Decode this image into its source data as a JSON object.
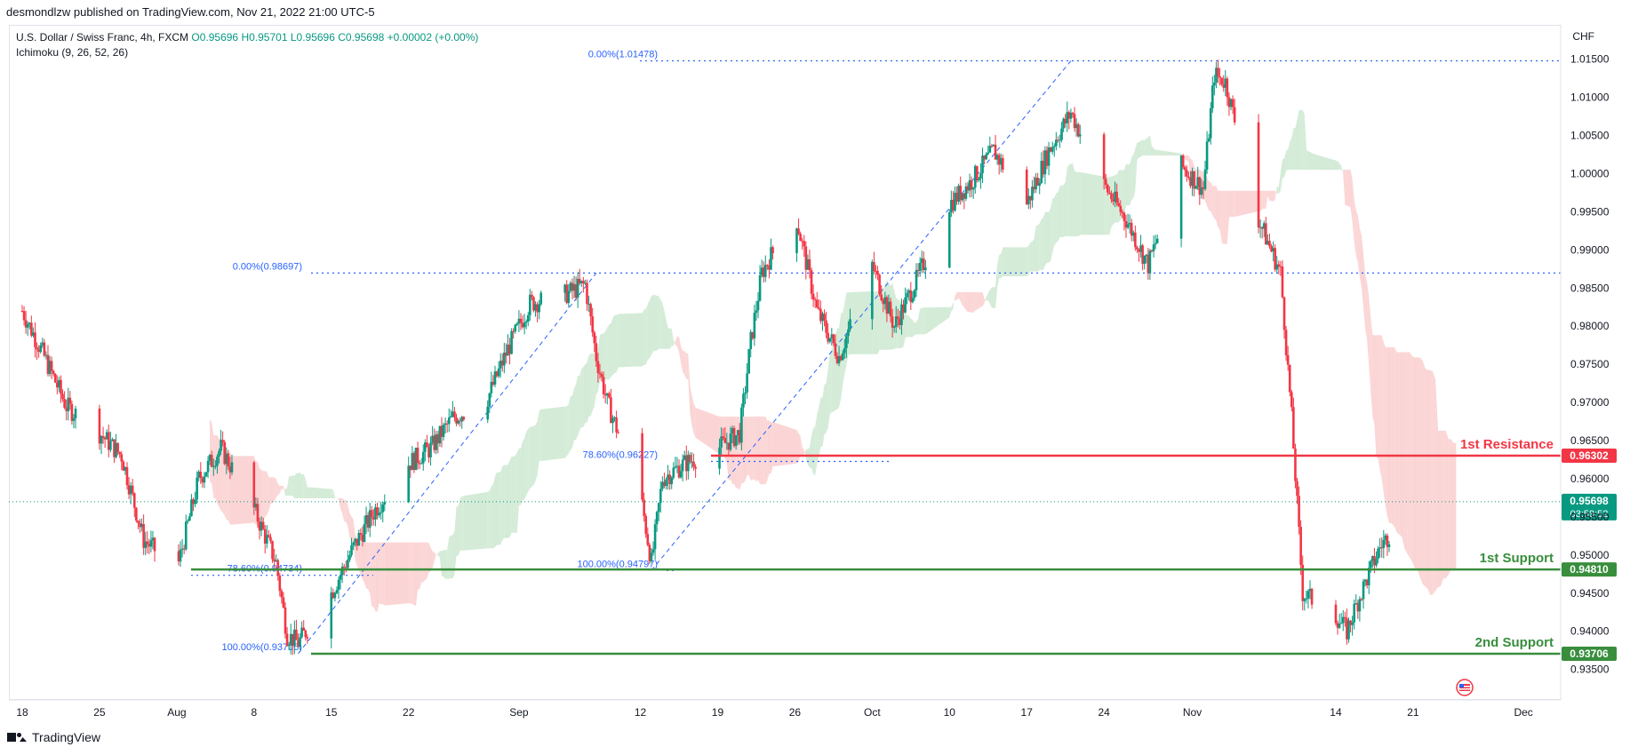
{
  "header": {
    "published_by": "desmondlzw published on TradingView.com, Nov 21, 2022 21:00 UTC-5",
    "symbol": "U.S. Dollar / Swiss Franc, 4h, FXCM",
    "ohlc": {
      "o": "O0.95696",
      "h": "H0.95701",
      "l": "L0.95696",
      "c": "C0.95698",
      "chg": "+0.00002 (+0.00%)"
    },
    "indicator": "Ichimoku (9, 26, 52, 26)",
    "currency": "CHF"
  },
  "footer": {
    "brand": "TradingView"
  },
  "colors": {
    "up": "#089981",
    "down": "#f23645",
    "resistance": "#f23645",
    "support": "#388e3c",
    "fib": "#2962ff",
    "cloud_up": "#d3ebd7",
    "cloud_down": "#fbd5d5"
  },
  "chart_data": {
    "type": "candlestick",
    "ylim": [
      0.931,
      1.0195
    ],
    "y_ticks": [
      "1.01500",
      "1.01000",
      "1.00500",
      "1.00000",
      "0.99500",
      "0.99000",
      "0.98500",
      "0.98000",
      "0.97500",
      "0.97000",
      "0.96500",
      "0.96000",
      "0.95500",
      "0.95000",
      "0.94500",
      "0.94000",
      "0.93500"
    ],
    "x_ticks": [
      "18",
      "25",
      "Aug",
      "8",
      "15",
      "22",
      "Sep",
      "12",
      "19",
      "26",
      "Oct",
      "10",
      "17",
      "24",
      "Nov",
      "14",
      "21",
      "Dec"
    ],
    "last_price": {
      "value": "0.95698",
      "countdown": "03:59:52"
    },
    "levels": [
      {
        "name": "1st Resistance",
        "value": 0.96302,
        "label": "0.96302",
        "type": "resistance"
      },
      {
        "name": "1st Support",
        "value": 0.9481,
        "label": "0.94810",
        "type": "support"
      },
      {
        "name": "2nd Support",
        "value": 0.93706,
        "label": "0.93706",
        "type": "support"
      }
    ],
    "fib_labels": [
      {
        "text": "0.00%(1.01478)",
        "value": 1.01478
      },
      {
        "text": "0.00%(0.98697)",
        "value": 0.98697
      },
      {
        "text": "78.60%(0.96227)",
        "value": 0.96227
      },
      {
        "text": "78.60%(0.94734)",
        "value": 0.94734
      },
      {
        "text": "100.00%(0.94797)",
        "value": 0.94797
      },
      {
        "text": "100.00%(0.93706)",
        "value": 0.93706
      }
    ],
    "price_path": [
      [
        "Jul 18",
        0.982
      ],
      [
        "Jul 20",
        0.976
      ],
      [
        "Jul 22",
        0.9695
      ],
      [
        "Jul 25",
        0.966
      ],
      [
        "Jul 27",
        0.963
      ],
      [
        "Jul 29",
        0.952
      ],
      [
        "Aug 1",
        0.948
      ],
      [
        "Aug 3",
        0.96
      ],
      [
        "Aug 5",
        0.964
      ],
      [
        "Aug 8",
        0.956
      ],
      [
        "Aug 10",
        0.949
      ],
      [
        "Aug 11",
        0.9395
      ],
      [
        "Aug 12",
        0.9385
      ],
      [
        "Aug 15",
        0.945
      ],
      [
        "Aug 17",
        0.951
      ],
      [
        "Aug 19",
        0.956
      ],
      [
        "Aug 22",
        0.962
      ],
      [
        "Aug 24",
        0.964
      ],
      [
        "Aug 26",
        0.968
      ],
      [
        "Aug 29",
        0.97
      ],
      [
        "Aug 31",
        0.977
      ],
      [
        "Sep 2",
        0.983
      ],
      [
        "Sep 5",
        0.984
      ],
      [
        "Sep 7",
        0.9855
      ],
      [
        "Sep 8",
        0.976
      ],
      [
        "Sep 9",
        0.97
      ],
      [
        "Sep 12",
        0.958
      ],
      [
        "Sep 13",
        0.949
      ],
      [
        "Sep 14",
        0.96
      ],
      [
        "Sep 16",
        0.962
      ],
      [
        "Sep 19",
        0.964
      ],
      [
        "Sep 21",
        0.966
      ],
      [
        "Sep 22",
        0.978
      ],
      [
        "Sep 23",
        0.987
      ],
      [
        "Sep 26",
        0.995
      ],
      [
        "Sep 28",
        0.982
      ],
      [
        "Sep 30",
        0.976
      ],
      [
        "Oct 3",
        0.988
      ],
      [
        "Oct 5",
        0.98
      ],
      [
        "Oct 7",
        0.986
      ],
      [
        "Oct 10",
        0.996
      ],
      [
        "Oct 12",
        0.999
      ],
      [
        "Oct 14",
        1.003
      ],
      [
        "Oct 17",
        0.996
      ],
      [
        "Oct 19",
        1.003
      ],
      [
        "Oct 21",
        1.008
      ],
      [
        "Oct 24",
        0.9985
      ],
      [
        "Oct 26",
        0.994
      ],
      [
        "Oct 28",
        0.988
      ],
      [
        "Oct 31",
        1.001
      ],
      [
        "Nov 2",
        0.998
      ],
      [
        "Nov 3",
        1.013
      ],
      [
        "Nov 4",
        1.012
      ],
      [
        "Nov 7",
        0.994
      ],
      [
        "Nov 9",
        0.987
      ],
      [
        "Nov 10",
        0.968
      ],
      [
        "Nov 11",
        0.945
      ],
      [
        "Nov 14",
        0.942
      ],
      [
        "Nov 15",
        0.94
      ],
      [
        "Nov 16",
        0.944
      ],
      [
        "Nov 18",
        0.951
      ],
      [
        "Nov 21",
        0.957
      ]
    ]
  }
}
